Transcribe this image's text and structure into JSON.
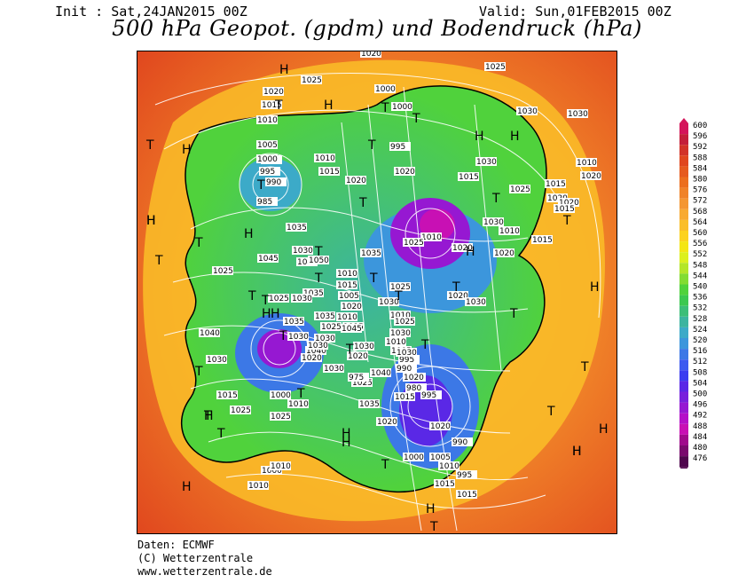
{
  "header": {
    "init": "Init : Sat,24JAN2015 00Z",
    "valid": "Valid: Sun,01FEB2015 00Z",
    "title": "500 hPa Geopot. (gpdm) und Bodendruck (hPa)"
  },
  "credits": {
    "line1": "Daten: ECMWF",
    "line2": "(C) Wetterzentrale",
    "line3": "www.wetterzentrale.de"
  },
  "legend": {
    "levels": [
      "600",
      "596",
      "592",
      "588",
      "584",
      "580",
      "576",
      "572",
      "568",
      "564",
      "560",
      "556",
      "552",
      "548",
      "544",
      "540",
      "536",
      "532",
      "528",
      "524",
      "520",
      "516",
      "512",
      "508",
      "504",
      "500",
      "496",
      "492",
      "488",
      "484",
      "480",
      "476"
    ],
    "colors": [
      "#d4145a",
      "#c41e3a",
      "#d23228",
      "#e0461e",
      "#e65a1e",
      "#ec6e1e",
      "#f08228",
      "#f49632",
      "#f8aa32",
      "#fabe28",
      "#fcd21e",
      "#f4e614",
      "#dcf01e",
      "#b4e628",
      "#82dc32",
      "#50d23c",
      "#3cc850",
      "#3cbe78",
      "#3cb4a0",
      "#3caac8",
      "#3c96dc",
      "#3c78e6",
      "#3c5af0",
      "#3c3cf0",
      "#5a28e6",
      "#7820dc",
      "#9618d2",
      "#b410c8",
      "#c810b4",
      "#a00a8c",
      "#7a0a6e",
      "#50064e"
    ]
  },
  "map": {
    "pressure_labels": [
      "1015",
      "1025",
      "1000",
      "1025",
      "1030",
      "1020",
      "1015",
      "1010",
      "1000",
      "985",
      "1005",
      "1000",
      "995",
      "990",
      "985",
      "1010",
      "1015",
      "1020",
      "995",
      "1020",
      "1030",
      "1010",
      "1020",
      "1030",
      "1015",
      "1020",
      "1025",
      "1020",
      "1015",
      "1015",
      "1030",
      "1010",
      "1015",
      "1010",
      "1020",
      "1025",
      "1020",
      "1035",
      "1030",
      "1025",
      "1035",
      "1045",
      "1040",
      "1035",
      "1025",
      "1030",
      "1050",
      "1010",
      "1015",
      "1005",
      "1020",
      "1025",
      "1030",
      "1010",
      "1010",
      "1015",
      "1020",
      "1030",
      "1045",
      "1035",
      "1025",
      "1030",
      "1040",
      "1030",
      "1040",
      "1030",
      "1035",
      "1020",
      "1025",
      "1030",
      "1030",
      "1020",
      "1040",
      "1025",
      "1030",
      "1015",
      "1025",
      "1030",
      "1035",
      "1030",
      "1010",
      "1005",
      "995",
      "990",
      "985",
      "980",
      "975",
      "1020",
      "1030",
      "1015",
      "1025",
      "1010",
      "1000",
      "995",
      "1020",
      "990",
      "1000",
      "1005",
      "1010",
      "995",
      "1000",
      "1010",
      "1015",
      "1015",
      "1010",
      "1020",
      "1020"
    ],
    "H": 20,
    "T": 30
  }
}
